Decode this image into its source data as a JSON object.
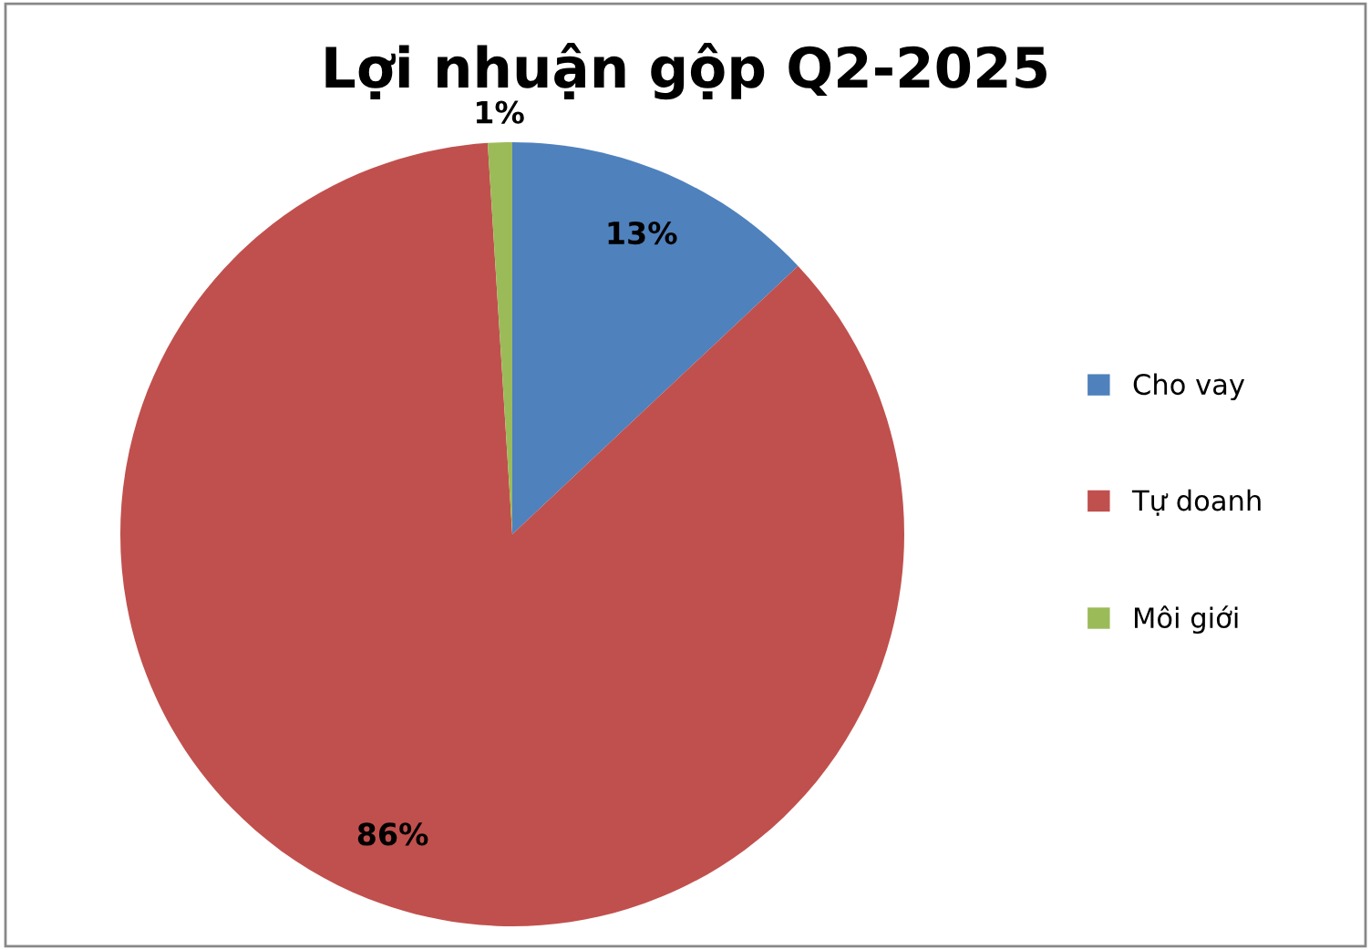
{
  "chart_data": {
    "type": "pie",
    "title": "Lợi nhuận gộp Q2-2025",
    "categories": [
      "Cho vay",
      "Tự doanh",
      "Môi giới"
    ],
    "values": [
      13,
      86,
      1
    ],
    "colors": [
      "#4f81bd",
      "#c0504d",
      "#9bbb59"
    ],
    "value_labels": [
      "13%",
      "86%",
      "1%"
    ],
    "legend": "right"
  }
}
